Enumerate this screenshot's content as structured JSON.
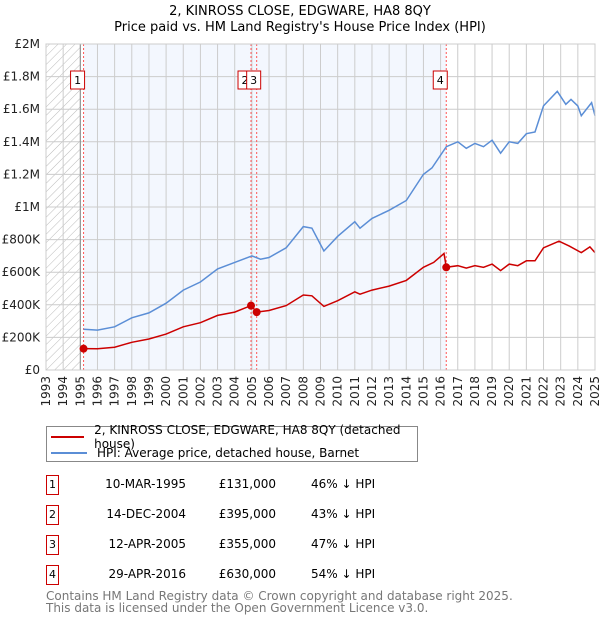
{
  "chart_data": {
    "type": "line",
    "title": "2, KINROSS CLOSE, EDGWARE, HA8 8QY",
    "subtitle": "Price paid vs. HM Land Registry's House Price Index (HPI)",
    "xlim": [
      1993,
      2025
    ],
    "ylim": [
      0,
      2000000
    ],
    "x_ticks": [
      "1993",
      "1994",
      "1995",
      "1996",
      "1997",
      "1998",
      "1999",
      "2000",
      "2001",
      "2002",
      "2003",
      "2004",
      "2005",
      "2006",
      "2007",
      "2008",
      "2009",
      "2010",
      "2011",
      "2012",
      "2013",
      "2014",
      "2015",
      "2016",
      "2017",
      "2018",
      "2019",
      "2020",
      "2021",
      "2022",
      "2023",
      "2024",
      "2025"
    ],
    "y_ticks": [
      {
        "v": 0,
        "label": "£0"
      },
      {
        "v": 200000,
        "label": "£200K"
      },
      {
        "v": 400000,
        "label": "£400K"
      },
      {
        "v": 600000,
        "label": "£600K"
      },
      {
        "v": 800000,
        "label": "£800K"
      },
      {
        "v": 1000000,
        "label": "£1M"
      },
      {
        "v": 1200000,
        "label": "£1.2M"
      },
      {
        "v": 1400000,
        "label": "£1.4M"
      },
      {
        "v": 1600000,
        "label": "£1.6M"
      },
      {
        "v": 1800000,
        "label": "£1.8M"
      },
      {
        "v": 2000000,
        "label": "£2M"
      }
    ],
    "grid": true,
    "shaded_range": [
      1995.19,
      2016.33
    ],
    "hatched_range": [
      1993,
      1995
    ],
    "series": [
      {
        "name": "2, KINROSS CLOSE, EDGWARE, HA8 8QY (detached house)",
        "color": "#cc0000",
        "x": [
          1995.19,
          1996,
          1997,
          1998,
          1999,
          2000,
          2001,
          2002,
          2003,
          2004,
          2004.95,
          2005.28,
          2006,
          2007,
          2008,
          2008.5,
          2009.2,
          2010,
          2011,
          2011.3,
          2012,
          2013,
          2014,
          2015,
          2015.6,
          2016.2,
          2016.33,
          2017,
          2017.5,
          2018,
          2018.5,
          2019,
          2019.5,
          2020,
          2020.5,
          2021,
          2021.5,
          2022,
          2022.9,
          2023.5,
          2024.2,
          2024.7,
          2025
        ],
        "y": [
          131000,
          130000,
          140000,
          170000,
          190000,
          220000,
          265000,
          290000,
          335000,
          355000,
          395000,
          355000,
          365000,
          395000,
          460000,
          455000,
          390000,
          425000,
          480000,
          465000,
          490000,
          515000,
          550000,
          630000,
          660000,
          715000,
          630000,
          640000,
          625000,
          640000,
          630000,
          650000,
          610000,
          650000,
          640000,
          670000,
          670000,
          750000,
          790000,
          760000,
          720000,
          755000,
          720000
        ]
      },
      {
        "name": "HPI: Average price, detached house, Barnet",
        "color": "#5b8ed6",
        "x": [
          1995.19,
          1996,
          1997,
          1998,
          1999,
          2000,
          2001,
          2002,
          2003,
          2004,
          2005,
          2005.5,
          2006,
          2007,
          2008,
          2008.5,
          2009.2,
          2010,
          2011,
          2011.3,
          2012,
          2013,
          2014,
          2015,
          2015.5,
          2016.33,
          2017,
          2017.5,
          2018,
          2018.5,
          2019,
          2019.5,
          2020,
          2020.5,
          2021,
          2021.5,
          2022,
          2022.8,
          2023.3,
          2023.6,
          2024,
          2024.2,
          2024.8,
          2025
        ],
        "y": [
          250000,
          245000,
          265000,
          320000,
          350000,
          410000,
          490000,
          540000,
          620000,
          660000,
          700000,
          680000,
          690000,
          750000,
          880000,
          870000,
          730000,
          820000,
          910000,
          870000,
          930000,
          980000,
          1040000,
          1200000,
          1240000,
          1370000,
          1400000,
          1360000,
          1390000,
          1370000,
          1410000,
          1330000,
          1400000,
          1390000,
          1450000,
          1460000,
          1620000,
          1710000,
          1630000,
          1660000,
          1620000,
          1560000,
          1640000,
          1560000
        ]
      }
    ],
    "sales": [
      {
        "id": "1",
        "x": 1995.19,
        "y": 131000
      },
      {
        "id": "2",
        "x": 2004.95,
        "y": 395000
      },
      {
        "id": "3",
        "x": 2005.28,
        "y": 355000
      },
      {
        "id": "4",
        "x": 2016.33,
        "y": 630000
      }
    ],
    "legend": "bottom"
  },
  "header": {
    "title": "2, KINROSS CLOSE, EDGWARE, HA8 8QY",
    "subtitle": "Price paid vs. HM Land Registry's House Price Index (HPI)"
  },
  "legend": {
    "items": [
      {
        "label": "2, KINROSS CLOSE, EDGWARE, HA8 8QY (detached house)",
        "color": "#cc0000"
      },
      {
        "label": "HPI: Average price, detached house, Barnet",
        "color": "#5b8ed6"
      }
    ]
  },
  "transactions": [
    {
      "num": "1",
      "date": "10-MAR-1995",
      "price": "£131,000",
      "hpi": "46% ↓ HPI"
    },
    {
      "num": "2",
      "date": "14-DEC-2004",
      "price": "£395,000",
      "hpi": "43% ↓ HPI"
    },
    {
      "num": "3",
      "date": "12-APR-2005",
      "price": "£355,000",
      "hpi": "47% ↓ HPI"
    },
    {
      "num": "4",
      "date": "29-APR-2016",
      "price": "£630,000",
      "hpi": "54% ↓ HPI"
    }
  ],
  "footer": {
    "line1": "Contains HM Land Registry data © Crown copyright and database right 2025.",
    "line2": "This data is licensed under the Open Government Licence v3.0."
  }
}
